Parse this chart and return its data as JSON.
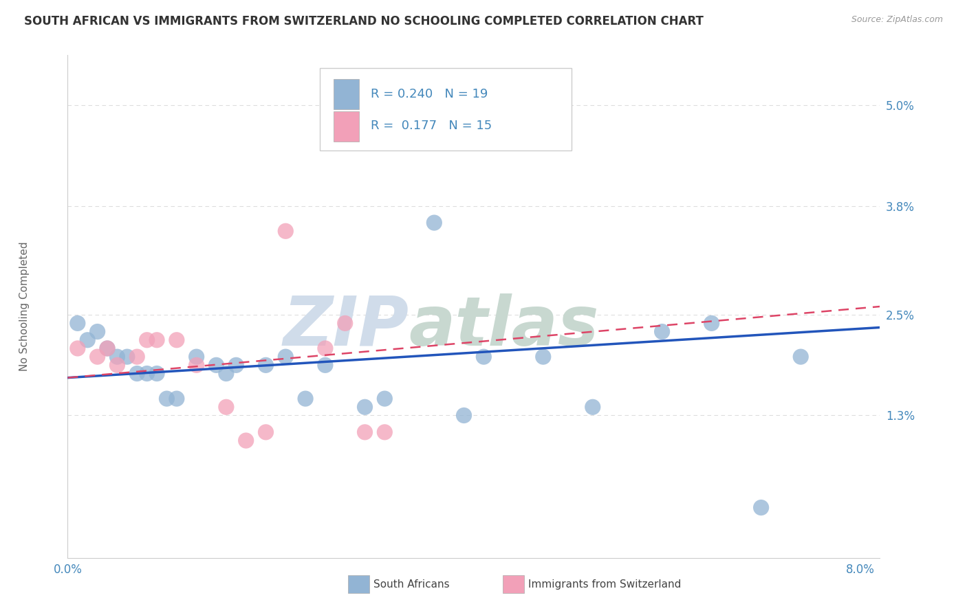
{
  "title": "SOUTH AFRICAN VS IMMIGRANTS FROM SWITZERLAND NO SCHOOLING COMPLETED CORRELATION CHART",
  "source": "Source: ZipAtlas.com",
  "ylabel": "No Schooling Completed",
  "xlim": [
    0.0,
    0.082
  ],
  "ylim": [
    -0.004,
    0.056
  ],
  "xticks": [
    0.0,
    0.01,
    0.02,
    0.03,
    0.04,
    0.05,
    0.06,
    0.07,
    0.08
  ],
  "xticklabels": [
    "0.0%",
    "",
    "",
    "",
    "",
    "",
    "",
    "",
    "8.0%"
  ],
  "ytick_positions": [
    0.013,
    0.025,
    0.038,
    0.05
  ],
  "ytick_labels": [
    "1.3%",
    "2.5%",
    "3.8%",
    "5.0%"
  ],
  "blue_color": "#92B4D4",
  "pink_color": "#F2A0B8",
  "blue_scatter_x": [
    0.001,
    0.002,
    0.003,
    0.004,
    0.005,
    0.006,
    0.007,
    0.008,
    0.009,
    0.01,
    0.011,
    0.013,
    0.015,
    0.016,
    0.017,
    0.02,
    0.022,
    0.024,
    0.026,
    0.03,
    0.032,
    0.037,
    0.04,
    0.042,
    0.048,
    0.053,
    0.06,
    0.065,
    0.07,
    0.074
  ],
  "blue_scatter_y": [
    0.024,
    0.022,
    0.023,
    0.021,
    0.02,
    0.02,
    0.018,
    0.018,
    0.018,
    0.015,
    0.015,
    0.02,
    0.019,
    0.018,
    0.019,
    0.019,
    0.02,
    0.015,
    0.019,
    0.014,
    0.015,
    0.036,
    0.013,
    0.02,
    0.02,
    0.014,
    0.023,
    0.024,
    0.002,
    0.02
  ],
  "pink_scatter_x": [
    0.001,
    0.003,
    0.004,
    0.005,
    0.007,
    0.008,
    0.009,
    0.011,
    0.013,
    0.016,
    0.018,
    0.02,
    0.022,
    0.026,
    0.028,
    0.03,
    0.032
  ],
  "pink_scatter_y": [
    0.021,
    0.02,
    0.021,
    0.019,
    0.02,
    0.022,
    0.022,
    0.022,
    0.019,
    0.014,
    0.01,
    0.011,
    0.035,
    0.021,
    0.024,
    0.011,
    0.011
  ],
  "R_blue": 0.24,
  "N_blue": 19,
  "R_pink": 0.177,
  "N_pink": 15,
  "blue_line_x": [
    0.0,
    0.082
  ],
  "blue_line_y": [
    0.0175,
    0.0235
  ],
  "pink_line_x": [
    0.0,
    0.082
  ],
  "pink_line_y": [
    0.0175,
    0.026
  ],
  "watermark_zip": "ZIP",
  "watermark_atlas": "atlas",
  "watermark_color": "#D0DCEA",
  "legend_labels": [
    "South Africans",
    "Immigrants from Switzerland"
  ],
  "title_color": "#333333",
  "axis_label_color": "#666666",
  "tick_color": "#4488BB",
  "source_color": "#999999",
  "grid_color": "#DDDDDD",
  "trend_blue_color": "#2255BB",
  "trend_pink_color": "#DD4466",
  "bg_color": "#FFFFFF"
}
